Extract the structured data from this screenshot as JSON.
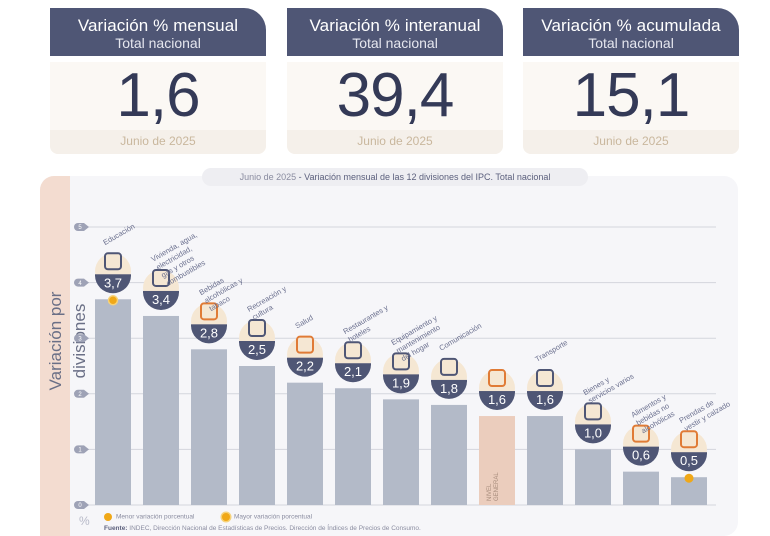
{
  "cards": [
    {
      "title": "Variación % mensual",
      "subtitle": "Total nacional",
      "value": "1,6",
      "period": "Junio de 2025"
    },
    {
      "title": "Variación % interanual",
      "subtitle": "Total nacional",
      "value": "39,4",
      "period": "Junio de 2025"
    },
    {
      "title": "Variación % acumulada",
      "subtitle": "Total nacional",
      "value": "15,1",
      "period": "Junio de 2025"
    }
  ],
  "chart_header": {
    "period": "Junio de 2025",
    "title": " - Variación mensual de las 12 divisiones del IPC. Total nacional"
  },
  "colors": {
    "header": "#4f5675",
    "bar": "#b3bac8",
    "general_bar": "#ebcdbd",
    "badge": "#4f5675",
    "accent_dot": "#f0a818",
    "icon_orange": "#e07b36"
  },
  "legend": {
    "min_label": "Menor variación porcentual",
    "max_label": "Mayor variación porcentual",
    "unit": "%"
  },
  "source": {
    "label": "Fuente:",
    "text": " INDEC, Dirección Nacional de Estadísticas de Precios. Dirección de Índices de Precios de Consumo."
  },
  "chart_data": {
    "type": "bar",
    "title": "Variación mensual de las 12 divisiones del IPC. Total nacional",
    "ylabel": "Variación por divisiones",
    "xlabel": "",
    "ylim": [
      0,
      5
    ],
    "yticks": [
      "0",
      "1",
      "2",
      "3",
      "4",
      "5"
    ],
    "grid": true,
    "categories": [
      "Educación",
      "Vivienda, agua, electricidad, gas y otros combustibles",
      "Bebidas alcohólicas y tabaco",
      "Recreación y cultura",
      "Salud",
      "Restaurantes y hoteles",
      "Equipamiento y mantenimiento del hogar",
      "Comunicación",
      "NIVEL GENERAL",
      "Transporte",
      "Bienes y servicios varios",
      "Alimentos y bebidas no alcohólicas",
      "Prendas de vestir y calzado"
    ],
    "labels": [
      "3,7",
      "3,4",
      "2,8",
      "2,5",
      "2,2",
      "2,1",
      "1,9",
      "1,8",
      "1,6",
      "1,6",
      "1,0",
      "0,6",
      "0,5"
    ],
    "values": [
      3.7,
      3.4,
      2.8,
      2.5,
      2.2,
      2.1,
      1.9,
      1.8,
      1.6,
      1.6,
      1.0,
      0.6,
      0.5
    ],
    "highlight": {
      "max": "Educación",
      "min": "Prendas de vestir y calzado",
      "general": "NIVEL GENERAL"
    }
  }
}
